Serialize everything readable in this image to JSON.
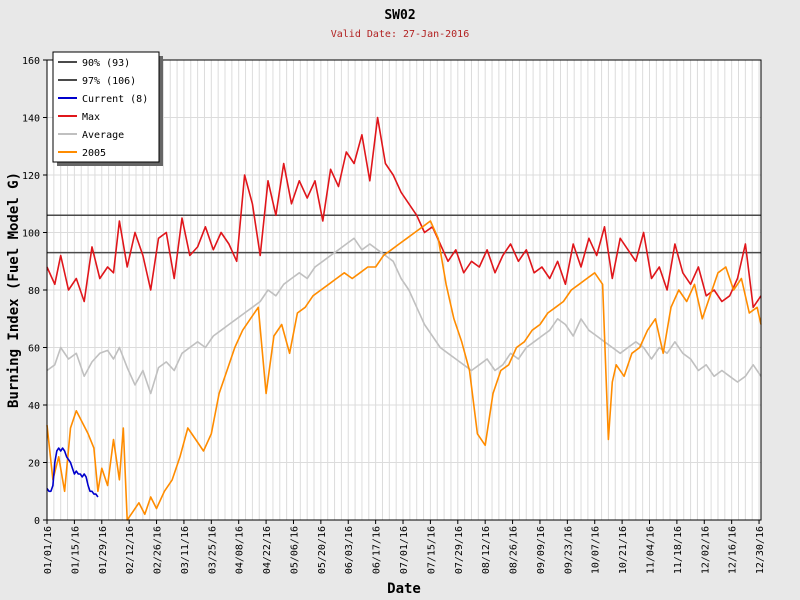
{
  "chart_data": {
    "type": "line",
    "title": "SW02",
    "subtitle": "Valid Date: 27-Jan-2016",
    "xlabel": "Date",
    "ylabel": "Burning Index (Fuel Model G)",
    "ylim": [
      0,
      160
    ],
    "yticks": [
      0,
      20,
      40,
      60,
      80,
      100,
      120,
      140,
      160
    ],
    "xlim": [
      "01/01/16",
      "12/31/16"
    ],
    "xticks": [
      "01/01/16",
      "01/15/16",
      "01/29/16",
      "02/12/16",
      "02/26/16",
      "03/11/16",
      "03/25/16",
      "04/08/16",
      "04/22/16",
      "05/06/16",
      "05/20/16",
      "06/03/16",
      "06/17/16",
      "07/01/16",
      "07/15/16",
      "07/29/16",
      "08/12/16",
      "08/26/16",
      "09/09/16",
      "09/23/16",
      "10/07/16",
      "10/21/16",
      "11/04/16",
      "11/18/16",
      "12/02/16",
      "12/16/16",
      "12/30/16"
    ],
    "grid": true,
    "legend_position": "top-left",
    "hlines": [
      {
        "name": "90% (93)",
        "value": 93,
        "color": "#4a4a4a"
      },
      {
        "name": "97% (106)",
        "value": 106,
        "color": "#4a4a4a"
      }
    ],
    "series": [
      {
        "name": "Max",
        "color": "#e0161b",
        "x": [
          "01/01/16",
          "01/05/16",
          "01/08/16",
          "01/12/16",
          "01/16/16",
          "01/20/16",
          "01/24/16",
          "01/28/16",
          "02/01/16",
          "02/04/16",
          "02/07/16",
          "02/11/16",
          "02/15/16",
          "02/19/16",
          "02/23/16",
          "02/27/16",
          "03/02/16",
          "03/06/16",
          "03/10/16",
          "03/14/16",
          "03/18/16",
          "03/22/16",
          "03/26/16",
          "03/30/16",
          "04/03/16",
          "04/07/16",
          "04/11/16",
          "04/15/16",
          "04/19/16",
          "04/23/16",
          "04/27/16",
          "05/01/16",
          "05/05/16",
          "05/09/16",
          "05/13/16",
          "05/17/16",
          "05/21/16",
          "05/25/16",
          "05/29/16",
          "06/02/16",
          "06/06/16",
          "06/10/16",
          "06/14/16",
          "06/18/16",
          "06/22/16",
          "06/26/16",
          "06/30/16",
          "07/04/16",
          "07/08/16",
          "07/12/16",
          "07/16/16",
          "07/20/16",
          "07/24/16",
          "07/28/16",
          "08/01/16",
          "08/05/16",
          "08/09/16",
          "08/13/16",
          "08/17/16",
          "08/21/16",
          "08/25/16",
          "08/29/16",
          "09/02/16",
          "09/06/16",
          "09/10/16",
          "09/14/16",
          "09/18/16",
          "09/22/16",
          "09/26/16",
          "09/30/16",
          "10/04/16",
          "10/08/16",
          "10/12/16",
          "10/16/16",
          "10/20/16",
          "10/24/16",
          "10/28/16",
          "11/01/16",
          "11/05/16",
          "11/09/16",
          "11/13/16",
          "11/17/16",
          "11/21/16",
          "11/25/16",
          "11/29/16",
          "12/03/16",
          "12/07/16",
          "12/11/16",
          "12/15/16",
          "12/19/16",
          "12/23/16",
          "12/27/16",
          "12/31/16"
        ],
        "values": [
          88,
          82,
          92,
          80,
          84,
          76,
          95,
          84,
          88,
          86,
          104,
          88,
          100,
          92,
          80,
          98,
          100,
          84,
          105,
          92,
          95,
          102,
          94,
          100,
          96,
          90,
          120,
          110,
          92,
          118,
          106,
          124,
          110,
          118,
          112,
          118,
          104,
          122,
          116,
          128,
          124,
          134,
          118,
          140,
          124,
          120,
          114,
          110,
          106,
          100,
          102,
          96,
          90,
          94,
          86,
          90,
          88,
          94,
          86,
          92,
          96,
          90,
          94,
          86,
          88,
          84,
          90,
          82,
          96,
          88,
          98,
          92,
          102,
          84,
          98,
          94,
          90,
          100,
          84,
          88,
          80,
          96,
          86,
          82,
          88,
          78,
          80,
          76,
          78,
          84,
          96,
          74,
          78
        ]
      },
      {
        "name": "Average",
        "color": "#c0c0c0",
        "x": [
          "01/01/16",
          "01/05/16",
          "01/08/16",
          "01/12/16",
          "01/16/16",
          "01/20/16",
          "01/24/16",
          "01/28/16",
          "02/01/16",
          "02/04/16",
          "02/07/16",
          "02/11/16",
          "02/15/16",
          "02/19/16",
          "02/23/16",
          "02/27/16",
          "03/02/16",
          "03/06/16",
          "03/10/16",
          "03/14/16",
          "03/18/16",
          "03/22/16",
          "03/26/16",
          "03/30/16",
          "04/03/16",
          "04/07/16",
          "04/11/16",
          "04/15/16",
          "04/19/16",
          "04/23/16",
          "04/27/16",
          "05/01/16",
          "05/05/16",
          "05/09/16",
          "05/13/16",
          "05/17/16",
          "05/21/16",
          "05/25/16",
          "05/29/16",
          "06/02/16",
          "06/06/16",
          "06/10/16",
          "06/14/16",
          "06/18/16",
          "06/22/16",
          "06/26/16",
          "06/30/16",
          "07/04/16",
          "07/08/16",
          "07/12/16",
          "07/16/16",
          "07/20/16",
          "07/24/16",
          "07/28/16",
          "08/01/16",
          "08/05/16",
          "08/09/16",
          "08/13/16",
          "08/17/16",
          "08/21/16",
          "08/25/16",
          "08/29/16",
          "09/02/16",
          "09/06/16",
          "09/10/16",
          "09/14/16",
          "09/18/16",
          "09/22/16",
          "09/26/16",
          "09/30/16",
          "10/04/16",
          "10/08/16",
          "10/12/16",
          "10/16/16",
          "10/20/16",
          "10/24/16",
          "10/28/16",
          "11/01/16",
          "11/05/16",
          "11/09/16",
          "11/13/16",
          "11/17/16",
          "11/21/16",
          "11/25/16",
          "11/29/16",
          "12/03/16",
          "12/07/16",
          "12/11/16",
          "12/15/16",
          "12/19/16",
          "12/23/16",
          "12/27/16",
          "12/31/16"
        ],
        "values": [
          52,
          54,
          60,
          56,
          58,
          50,
          55,
          58,
          59,
          56,
          60,
          53,
          47,
          52,
          44,
          53,
          55,
          52,
          58,
          60,
          62,
          60,
          64,
          66,
          68,
          70,
          72,
          74,
          76,
          80,
          78,
          82,
          84,
          86,
          84,
          88,
          90,
          92,
          94,
          96,
          98,
          94,
          96,
          94,
          92,
          90,
          84,
          80,
          74,
          68,
          64,
          60,
          58,
          56,
          54,
          52,
          54,
          56,
          52,
          54,
          58,
          56,
          60,
          62,
          64,
          66,
          70,
          68,
          64,
          70,
          66,
          64,
          62,
          60,
          58,
          60,
          62,
          60,
          56,
          60,
          58,
          62,
          58,
          56,
          52,
          54,
          50,
          52,
          50,
          48,
          50,
          54,
          50
        ]
      },
      {
        "name": "2005",
        "color": "#ff8c00",
        "x": [
          "01/01/16",
          "01/04/16",
          "01/07/16",
          "01/10/16",
          "01/13/16",
          "01/16/16",
          "01/19/16",
          "01/22/16",
          "01/25/16",
          "01/27/16",
          "01/29/16",
          "02/01/16",
          "02/04/16",
          "02/07/16",
          "02/09/16",
          "02/11/16",
          "02/14/16",
          "02/17/16",
          "02/20/16",
          "02/23/16",
          "02/26/16",
          "03/01/16",
          "03/05/16",
          "03/09/16",
          "03/13/16",
          "03/17/16",
          "03/21/16",
          "03/25/16",
          "03/29/16",
          "04/02/16",
          "04/06/16",
          "04/10/16",
          "04/14/16",
          "04/18/16",
          "04/22/16",
          "04/26/16",
          "04/30/16",
          "05/04/16",
          "05/08/16",
          "05/12/16",
          "05/16/16",
          "05/20/16",
          "05/24/16",
          "05/28/16",
          "06/01/16",
          "06/05/16",
          "06/09/16",
          "06/13/16",
          "06/17/16",
          "06/21/16",
          "06/25/16",
          "06/29/16",
          "07/03/16",
          "07/07/16",
          "07/11/16",
          "07/15/16",
          "07/19/16",
          "07/23/16",
          "07/27/16",
          "07/31/16",
          "08/04/16",
          "08/08/16",
          "08/12/16",
          "08/16/16",
          "08/20/16",
          "08/24/16",
          "08/28/16",
          "09/01/16",
          "09/05/16",
          "09/09/16",
          "09/13/16",
          "09/17/16",
          "09/21/16",
          "09/25/16",
          "09/29/16",
          "10/03/16",
          "10/07/16",
          "10/11/16",
          "10/14/16",
          "10/16/16",
          "10/18/16",
          "10/22/16",
          "10/26/16",
          "10/30/16",
          "11/03/16",
          "11/07/16",
          "11/11/16",
          "11/15/16",
          "11/19/16",
          "11/23/16",
          "11/27/16",
          "12/01/16",
          "12/05/16",
          "12/09/16",
          "12/13/16",
          "12/17/16",
          "12/21/16",
          "12/25/16",
          "12/29/16",
          "12/31/16"
        ],
        "values": [
          33,
          14,
          22,
          10,
          32,
          38,
          34,
          30,
          25,
          10,
          18,
          12,
          28,
          14,
          32,
          0,
          3,
          6,
          2,
          8,
          4,
          10,
          14,
          22,
          32,
          28,
          24,
          30,
          44,
          52,
          60,
          66,
          70,
          74,
          44,
          64,
          68,
          58,
          72,
          74,
          78,
          80,
          82,
          84,
          86,
          84,
          86,
          88,
          88,
          92,
          94,
          96,
          98,
          100,
          102,
          104,
          98,
          82,
          70,
          62,
          52,
          30,
          26,
          44,
          52,
          54,
          60,
          62,
          66,
          68,
          72,
          74,
          76,
          80,
          82,
          84,
          86,
          82,
          28,
          48,
          54,
          50,
          58,
          60,
          66,
          70,
          58,
          74,
          80,
          76,
          82,
          70,
          78,
          86,
          88,
          80,
          84,
          72,
          74,
          68
        ]
      },
      {
        "name": "Current (8)",
        "color": "#0000cc",
        "x": [
          "01/01/16",
          "01/02/16",
          "01/03/16",
          "01/04/16",
          "01/05/16",
          "01/06/16",
          "01/07/16",
          "01/08/16",
          "01/09/16",
          "01/10/16",
          "01/11/16",
          "01/12/16",
          "01/13/16",
          "01/14/16",
          "01/15/16",
          "01/16/16",
          "01/17/16",
          "01/18/16",
          "01/19/16",
          "01/20/16",
          "01/21/16",
          "01/22/16",
          "01/23/16",
          "01/24/16",
          "01/25/16",
          "01/26/16",
          "01/27/16"
        ],
        "values": [
          11,
          10,
          10,
          12,
          20,
          24,
          25,
          24,
          25,
          24,
          22,
          21,
          20,
          18,
          16,
          17,
          16,
          16,
          15,
          16,
          15,
          12,
          10,
          10,
          9,
          9,
          8
        ]
      }
    ]
  }
}
